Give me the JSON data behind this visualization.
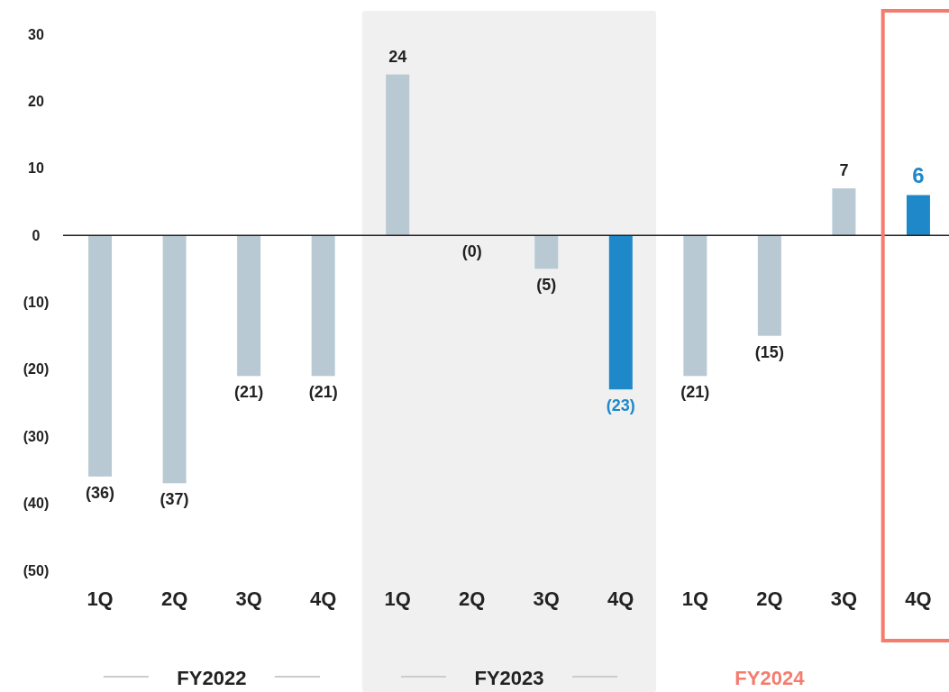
{
  "chart_data": {
    "type": "bar",
    "categories": [
      "1Q",
      "2Q",
      "3Q",
      "4Q",
      "1Q",
      "2Q",
      "3Q",
      "4Q",
      "1Q",
      "2Q",
      "3Q",
      "4Q"
    ],
    "values": [
      -36,
      -37,
      -21,
      -21,
      24,
      0,
      -5,
      -23,
      -21,
      -15,
      7,
      6
    ],
    "colors": [
      "#b8c9d3",
      "#b8c9d3",
      "#b8c9d3",
      "#b8c9d3",
      "#b8c9d3",
      "#b8c9d3",
      "#b8c9d3",
      "#1e88c9",
      "#b8c9d3",
      "#b8c9d3",
      "#b8c9d3",
      "#1e88c9"
    ],
    "value_labels": [
      "(36)",
      "(37)",
      "(21)",
      "(21)",
      "24",
      "(0)",
      "(5)",
      "(23)",
      "(21)",
      "(15)",
      "7",
      "6"
    ],
    "ylim": [
      -50,
      30
    ],
    "yticks": [
      {
        "value": -50,
        "label": "(50)"
      },
      {
        "value": -40,
        "label": "(40)"
      },
      {
        "value": -30,
        "label": "(30)"
      },
      {
        "value": -20,
        "label": "(20)"
      },
      {
        "value": -10,
        "label": "(10)"
      },
      0,
      10,
      20,
      30
    ],
    "annotations": [
      "FY2022",
      "FY2023",
      "FY2024"
    ]
  }
}
